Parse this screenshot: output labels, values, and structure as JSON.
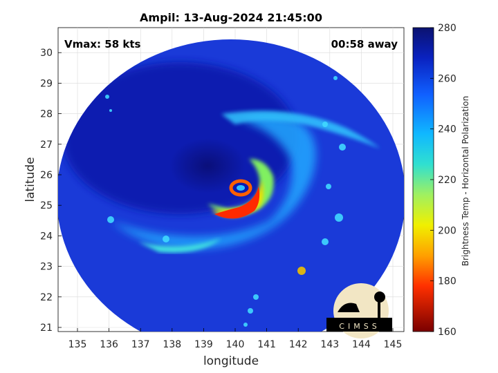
{
  "title": "Ampil: 13-Aug-2024 21:45:00",
  "vmax_label": "Vmax: 58 kts",
  "time_label": "00:58 away",
  "xlabel": "longitude",
  "ylabel": "latitude",
  "colorbar_label": "Brightness Temp - Horizontal Polarization",
  "logo_text": "CIMSS",
  "x_ticks": [
    "135",
    "136",
    "137",
    "138",
    "139",
    "140",
    "141",
    "142",
    "143",
    "144",
    "145"
  ],
  "y_ticks": [
    "21",
    "22",
    "23",
    "24",
    "25",
    "26",
    "27",
    "28",
    "29",
    "30"
  ],
  "colorbar_ticks": [
    "160",
    "180",
    "200",
    "220",
    "240",
    "260",
    "280"
  ],
  "colors": {
    "background_cold": "#1a3ad8",
    "deep_blue": "#0a0f8a",
    "colormap_top": "#0b1270",
    "colormap_bottom": "#7a0000"
  }
}
